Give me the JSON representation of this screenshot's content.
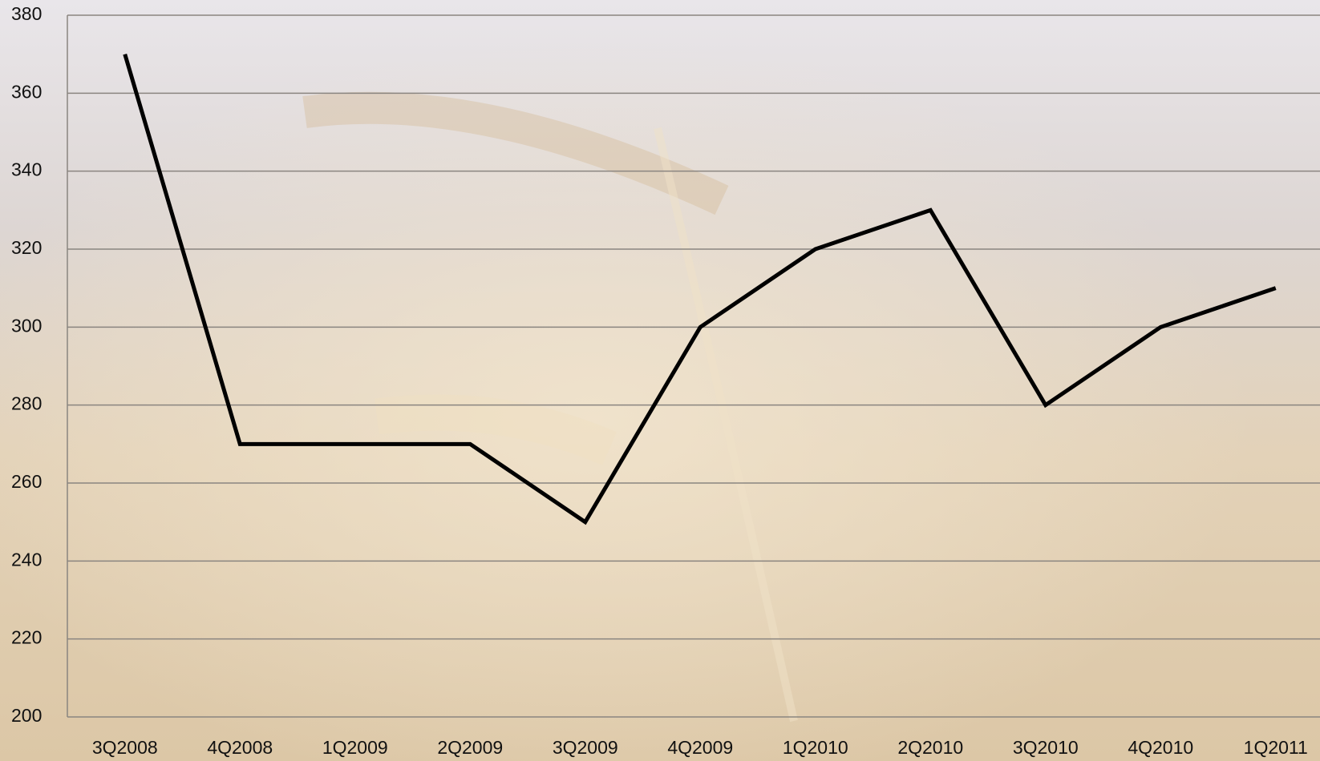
{
  "chart_data": {
    "type": "line",
    "categories": [
      "3Q2008",
      "4Q2008",
      "1Q2009",
      "2Q2009",
      "3Q2009",
      "4Q2009",
      "1Q2010",
      "2Q2010",
      "3Q2010",
      "4Q2010",
      "1Q2011"
    ],
    "series": [
      {
        "color": "#000000",
        "values": [
          370,
          270,
          270,
          270,
          250,
          300,
          320,
          330,
          280,
          300,
          310
        ]
      }
    ],
    "ylim": [
      200,
      380
    ],
    "yticks": [
      200,
      220,
      240,
      260,
      280,
      300,
      320,
      340,
      360,
      380
    ],
    "grid": true
  }
}
